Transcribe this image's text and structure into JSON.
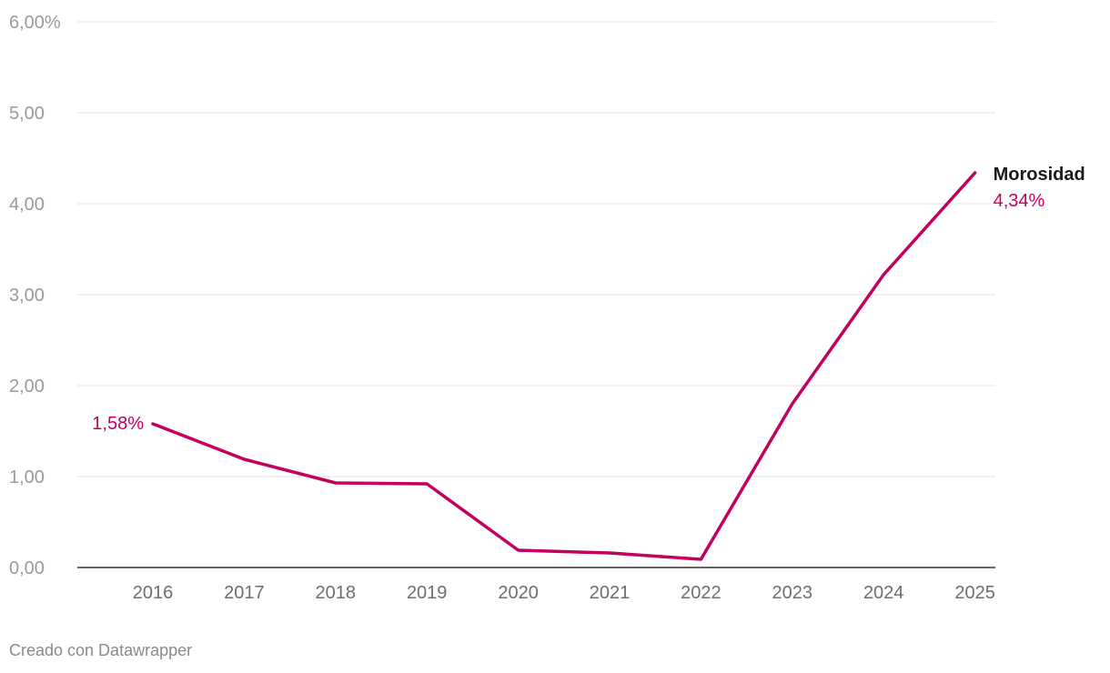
{
  "chart_data": {
    "type": "line",
    "title": "",
    "xlabel": "",
    "ylabel": "",
    "x": [
      "2016",
      "2017",
      "2018",
      "2019",
      "2020",
      "2021",
      "2022",
      "2023",
      "2024",
      "2025"
    ],
    "series": [
      {
        "name": "Morosidad",
        "values": [
          1.58,
          1.19,
          0.93,
          0.92,
          0.19,
          0.16,
          0.09,
          1.8,
          3.22,
          4.34
        ],
        "color": "#c2005e"
      }
    ],
    "ylim": [
      0,
      6
    ],
    "yticks": [
      0,
      1,
      2,
      3,
      4,
      5,
      6
    ],
    "ytick_labels": [
      "0,00",
      "1,00",
      "2,00",
      "3,00",
      "4,00",
      "5,00",
      "6,00%"
    ],
    "grid": true,
    "labels": {
      "start_value": "1,58%",
      "end_value": "4,34%",
      "series_label": "Morosidad"
    }
  },
  "footer": {
    "credit": "Creado con Datawrapper"
  }
}
